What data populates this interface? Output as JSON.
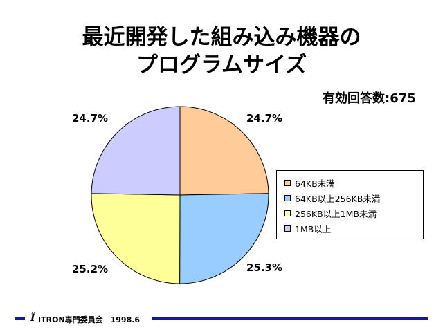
{
  "chart_data": {
    "type": "pie",
    "title": "最近開発した組み込み機器の\nプログラムサイズ",
    "annotation": "有効回答数:675",
    "categories": [
      "64KB未満",
      "64KB以上256KB未満",
      "256KB以上1MB未満",
      "1MB以上"
    ],
    "values": [
      24.7,
      25.3,
      25.2,
      24.7
    ],
    "data_labels": [
      "24.7%",
      "25.3%",
      "25.2%",
      "24.7%"
    ],
    "colors": [
      "#ffcc99",
      "#99ccff",
      "#ffff99",
      "#ccccff"
    ],
    "legend_position": "right",
    "start_angle": "12 o'clock",
    "direction": "clockwise"
  },
  "footer": {
    "logo_icon": "itron-logo-icon",
    "text": "ITRON専門委員会　1998.6"
  }
}
